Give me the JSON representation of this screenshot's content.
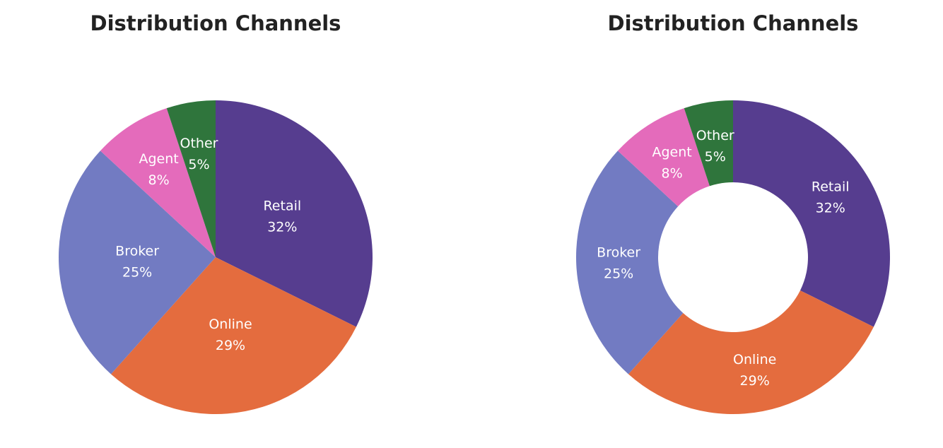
{
  "chart_data": [
    {
      "type": "pie",
      "title": "Distribution Channels",
      "categories": [
        "Retail",
        "Online",
        "Broker",
        "Agent",
        "Other"
      ],
      "values": [
        32,
        29,
        25,
        8,
        5
      ],
      "value_labels": [
        "32%",
        "29%",
        "25%",
        "8%",
        "5%"
      ],
      "colors": [
        "#563d8f",
        "#e46c3e",
        "#727bc2",
        "#e46bbb",
        "#2f753c"
      ],
      "start": "top, clockwise",
      "donut": false
    },
    {
      "type": "pie",
      "title": "Distribution Channels",
      "categories": [
        "Retail",
        "Online",
        "Broker",
        "Agent",
        "Other"
      ],
      "values": [
        32,
        29,
        25,
        8,
        5
      ],
      "value_labels": [
        "32%",
        "29%",
        "25%",
        "8%",
        "5%"
      ],
      "colors": [
        "#563d8f",
        "#e46c3e",
        "#727bc2",
        "#e46bbb",
        "#2f753c"
      ],
      "start": "top, clockwise",
      "donut": true,
      "hole_fraction": 0.48
    }
  ]
}
